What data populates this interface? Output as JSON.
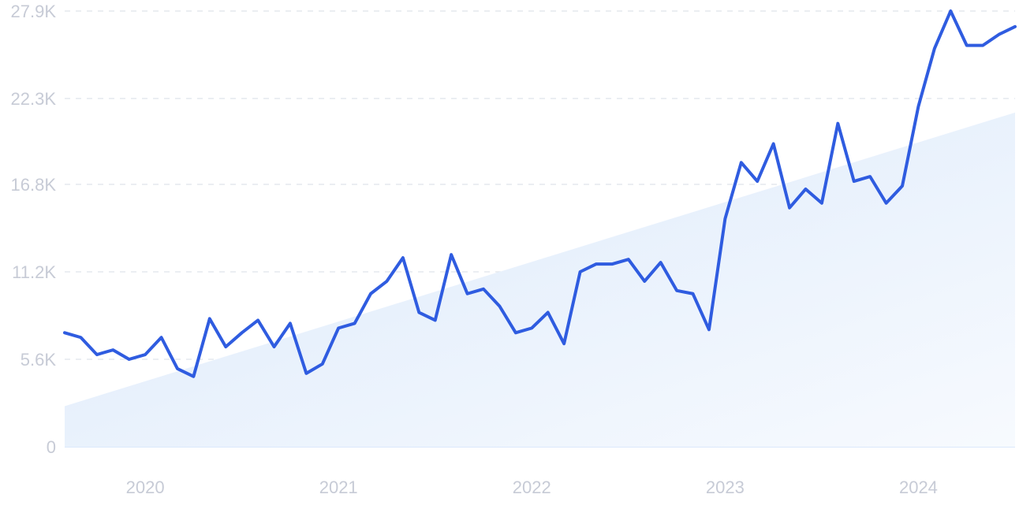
{
  "colors": {
    "line": "#2f5ce0",
    "trend_fill_start": "#dbe9fb",
    "trend_fill_end": "#f7fafe",
    "grid": "#dfe3ea",
    "tick_text": "#c7cbd6"
  },
  "chart_data": {
    "type": "line",
    "title": "",
    "xlabel": "",
    "ylabel": "",
    "x_start": "2019-08",
    "x_end": "2024-07",
    "ylim": [
      0,
      27900
    ],
    "yticks": [
      0,
      5600,
      11200,
      16800,
      22300,
      27900
    ],
    "ytick_labels": [
      "0",
      "5.6K",
      "11.2K",
      "16.8K",
      "22.3K",
      "27.9K"
    ],
    "xticks": [
      "2020-01",
      "2021-01",
      "2022-01",
      "2023-01",
      "2024-01"
    ],
    "xtick_labels": [
      "2020",
      "2021",
      "2022",
      "2023",
      "2024"
    ],
    "grid": true,
    "legend": "none",
    "series": [
      {
        "x": [
          "2019-08",
          "2019-09",
          "2019-10",
          "2019-11",
          "2019-12",
          "2020-01",
          "2020-02",
          "2020-03",
          "2020-04",
          "2020-05",
          "2020-06",
          "2020-07",
          "2020-08",
          "2020-09",
          "2020-10",
          "2020-11",
          "2020-12",
          "2021-01",
          "2021-02",
          "2021-03",
          "2021-04",
          "2021-05",
          "2021-06",
          "2021-07",
          "2021-08",
          "2021-09",
          "2021-10",
          "2021-11",
          "2021-12",
          "2022-01",
          "2022-02",
          "2022-03",
          "2022-04",
          "2022-05",
          "2022-06",
          "2022-07",
          "2022-08",
          "2022-09",
          "2022-10",
          "2022-11",
          "2022-12",
          "2023-01",
          "2023-02",
          "2023-03",
          "2023-04",
          "2023-05",
          "2023-06",
          "2023-07",
          "2023-08",
          "2023-09",
          "2023-10",
          "2023-11",
          "2023-12",
          "2024-01",
          "2024-02",
          "2024-03",
          "2024-04",
          "2024-05",
          "2024-06",
          "2024-07"
        ],
        "values": [
          7300,
          7000,
          5900,
          6200,
          5600,
          5900,
          7000,
          5000,
          4500,
          8200,
          6400,
          7300,
          8100,
          6400,
          7900,
          4700,
          5300,
          7600,
          7900,
          9800,
          10600,
          12100,
          8600,
          8100,
          12300,
          9800,
          10100,
          9000,
          7300,
          7600,
          8600,
          6600,
          11200,
          11700,
          11700,
          12000,
          10600,
          11800,
          10000,
          9800,
          7500,
          14600,
          18200,
          17000,
          19400,
          15300,
          16500,
          15600,
          20700,
          17000,
          17300,
          15600,
          16700,
          21800,
          25500,
          27900,
          25700,
          25700,
          26400,
          26900
        ]
      }
    ],
    "trend": {
      "type": "area",
      "start_value": 2600,
      "end_value": 21400
    }
  }
}
